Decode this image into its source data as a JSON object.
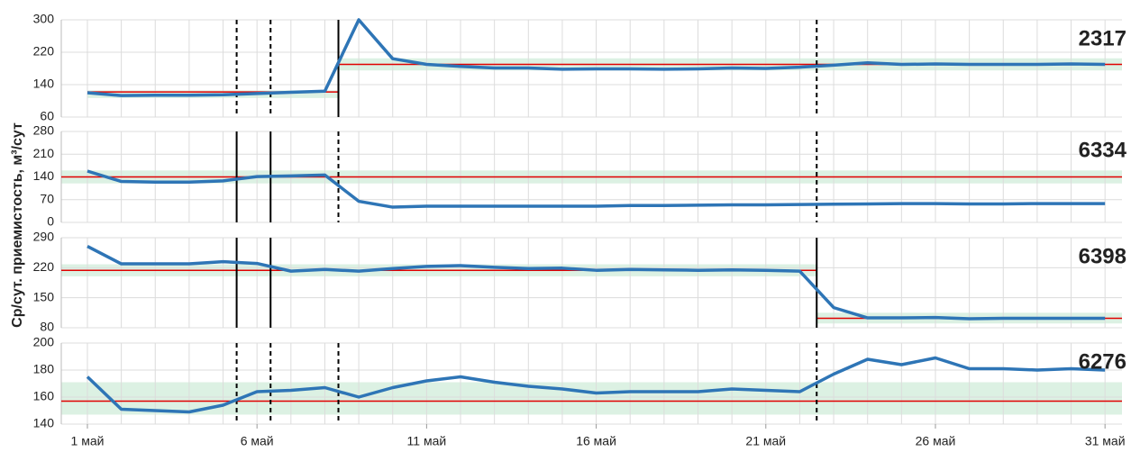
{
  "chart_data": {
    "type": "line",
    "y_label": "Ср/сут. приемистость, м³/сут",
    "x": [
      1,
      2,
      3,
      4,
      5,
      6,
      7,
      8,
      9,
      10,
      11,
      12,
      13,
      14,
      15,
      16,
      17,
      18,
      19,
      20,
      21,
      22,
      23,
      24,
      25,
      26,
      27,
      28,
      29,
      30,
      31
    ],
    "xlim": [
      0.23,
      31.5
    ],
    "xticks": [
      {
        "value": 1,
        "label": "1 май"
      },
      {
        "value": 6,
        "label": "6 май"
      },
      {
        "value": 11,
        "label": "11 май"
      },
      {
        "value": 16,
        "label": "16 май"
      },
      {
        "value": 21,
        "label": "21 май"
      },
      {
        "value": 26,
        "label": "26 май"
      },
      {
        "value": 31,
        "label": "31 май"
      }
    ],
    "color": "#2e75b6",
    "reference_color": "#e00000",
    "band_color": "#dcf1e3",
    "grid": true,
    "panels": [
      {
        "title": "2317",
        "ylim": [
          60,
          300
        ],
        "yticks": [
          60,
          140,
          220,
          300
        ],
        "values": [
          120,
          113,
          114,
          114,
          115,
          118,
          121,
          124,
          300,
          204,
          190,
          185,
          181,
          181,
          178,
          179,
          179,
          178,
          179,
          181,
          180,
          183,
          188,
          194,
          190,
          191,
          190,
          190,
          190,
          191,
          190
        ],
        "reference": [
          {
            "from": 1,
            "to": 8.4,
            "value": 122,
            "band": [
              107,
              126
            ]
          },
          {
            "from": 8.4,
            "to": 31.5,
            "value": 190,
            "band": [
              175,
              205
            ]
          }
        ],
        "events": [
          {
            "x": 5.4,
            "style": "dashed"
          },
          {
            "x": 6.4,
            "style": "dashed"
          },
          {
            "x": 8.4,
            "style": "solid"
          },
          {
            "x": 22.5,
            "style": "dashed"
          }
        ]
      },
      {
        "title": "6334",
        "ylim": [
          0,
          280
        ],
        "yticks": [
          0,
          70,
          140,
          210,
          280
        ],
        "values": [
          158,
          126,
          124,
          124,
          128,
          141,
          143,
          146,
          65,
          47,
          50,
          50,
          50,
          50,
          50,
          50,
          52,
          52,
          53,
          54,
          54,
          55,
          56,
          57,
          58,
          58,
          57,
          57,
          58,
          58,
          58
        ],
        "reference": [
          {
            "from": 0.23,
            "to": 31.5,
            "value": 140,
            "band": [
              120,
              160
            ]
          }
        ],
        "events": [
          {
            "x": 5.4,
            "style": "solid"
          },
          {
            "x": 6.4,
            "style": "solid"
          },
          {
            "x": 8.4,
            "style": "dashed"
          },
          {
            "x": 22.5,
            "style": "dashed"
          }
        ]
      },
      {
        "title": "6398",
        "ylim": [
          80,
          290
        ],
        "yticks": [
          80,
          150,
          220,
          290
        ],
        "values": [
          270,
          229,
          229,
          229,
          234,
          230,
          212,
          216,
          212,
          218,
          223,
          225,
          221,
          218,
          219,
          214,
          216,
          215,
          214,
          215,
          214,
          212,
          127,
          103,
          103,
          104,
          101,
          102,
          102,
          102,
          102
        ],
        "reference": [
          {
            "from": 0.23,
            "to": 22.5,
            "value": 214,
            "band": [
              200,
              228
            ]
          },
          {
            "from": 22.5,
            "to": 31.5,
            "value": 102,
            "band": [
              90,
              115
            ]
          }
        ],
        "events": [
          {
            "x": 5.4,
            "style": "solid"
          },
          {
            "x": 6.4,
            "style": "solid"
          },
          {
            "x": 22.5,
            "style": "solid"
          }
        ]
      },
      {
        "title": "6276",
        "ylim": [
          140,
          200
        ],
        "yticks": [
          140,
          160,
          180,
          200
        ],
        "values": [
          175,
          151,
          150,
          149,
          154,
          164,
          165,
          167,
          160,
          167,
          172,
          175,
          171,
          168,
          166,
          163,
          164,
          164,
          164,
          166,
          165,
          164,
          177,
          188,
          184,
          189,
          181,
          181,
          180,
          181,
          180
        ],
        "reference": [
          {
            "from": 0.23,
            "to": 31.5,
            "value": 157,
            "band": [
              147,
              171
            ]
          }
        ],
        "events": [
          {
            "x": 5.4,
            "style": "dashed"
          },
          {
            "x": 6.4,
            "style": "dashed"
          },
          {
            "x": 8.4,
            "style": "dashed"
          },
          {
            "x": 22.5,
            "style": "dashed"
          }
        ]
      }
    ]
  }
}
